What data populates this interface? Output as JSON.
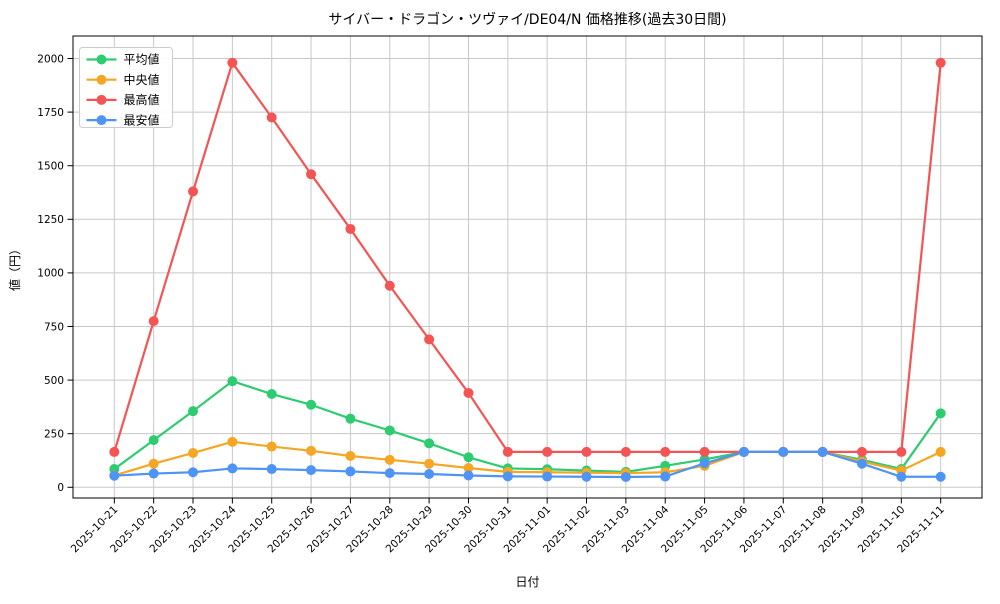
{
  "chart_data": {
    "type": "line",
    "title": "サイバー・ドラゴン・ツヴァイ/DE04/N 価格推移(過去30日間)",
    "xlabel": "日付",
    "ylabel": "値（円）",
    "x": [
      "2025-10-21",
      "2025-10-22",
      "2025-10-23",
      "2025-10-24",
      "2025-10-25",
      "2025-10-26",
      "2025-10-27",
      "2025-10-28",
      "2025-10-29",
      "2025-10-30",
      "2025-10-31",
      "2025-11-01",
      "2025-11-02",
      "2025-11-03",
      "2025-11-04",
      "2025-11-05",
      "2025-11-06",
      "2025-11-07",
      "2025-11-08",
      "2025-11-09",
      "2025-11-10",
      "2025-11-11"
    ],
    "series": [
      {
        "name": "平均値",
        "color": "#2ecc71",
        "values": [
          85,
          220,
          355,
          495,
          435,
          385,
          320,
          265,
          205,
          140,
          88,
          84,
          78,
          72,
          100,
          130,
          165,
          165,
          165,
          128,
          85,
          345
        ]
      },
      {
        "name": "中央値",
        "color": "#f5a623",
        "values": [
          55,
          110,
          160,
          212,
          190,
          170,
          146,
          128,
          110,
          90,
          72,
          70,
          68,
          66,
          70,
          100,
          165,
          165,
          165,
          120,
          78,
          165
        ]
      },
      {
        "name": "最高値",
        "color": "#f55454",
        "values": [
          165,
          775,
          1380,
          1980,
          1725,
          1460,
          1205,
          940,
          690,
          440,
          165,
          165,
          165,
          165,
          165,
          165,
          165,
          165,
          165,
          165,
          165,
          1980
        ]
      },
      {
        "name": "最安値",
        "color": "#4d94f5",
        "values": [
          54,
          64,
          70,
          88,
          85,
          80,
          74,
          66,
          62,
          55,
          51,
          50,
          49,
          48,
          50,
          112,
          165,
          165,
          165,
          110,
          49,
          49
        ]
      }
    ],
    "yticks": [
      0,
      250,
      500,
      750,
      1000,
      1250,
      1500,
      1750,
      2000
    ],
    "ylim": [
      -50,
      2105
    ],
    "grid": true,
    "grid_color": "#c8c8c8",
    "legend_position": "upper left",
    "legend_names": [
      "平均値",
      "中央値",
      "最高値",
      "最安値"
    ],
    "background": "#ffffff",
    "spine_color": "#000000"
  }
}
